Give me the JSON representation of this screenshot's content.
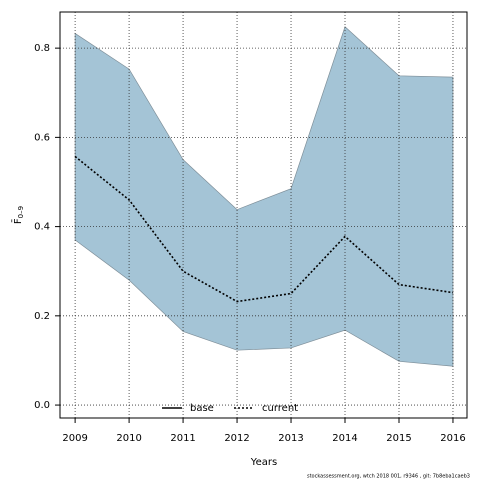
{
  "chart_data": {
    "type": "line",
    "xlabel": "Years",
    "ylabel": {
      "main": "F̄",
      "sub": "0–9"
    },
    "footer": "stockassessment.org, wtch 2018 001, r9346 , git: 7b8eba1caeb3",
    "x": [
      2009,
      2010,
      2011,
      2012,
      2013,
      2014,
      2015,
      2016
    ],
    "series": [
      {
        "name": "current",
        "color": "#000000",
        "band_color": "#a4c4d6",
        "values": [
          0.557,
          0.46,
          0.3,
          0.232,
          0.25,
          0.378,
          0.27,
          0.252
        ],
        "lower": [
          0.37,
          0.28,
          0.165,
          0.123,
          0.128,
          0.168,
          0.098,
          0.087
        ],
        "upper": [
          0.833,
          0.753,
          0.55,
          0.438,
          0.485,
          0.848,
          0.738,
          0.735
        ]
      }
    ],
    "legend": [
      {
        "name": "base",
        "style": "solid"
      },
      {
        "name": "current",
        "style": "dotted"
      }
    ],
    "legend_position": "bottom",
    "xlim": [
      2008.72,
      2016.26
    ],
    "xticks": [
      2009,
      2010,
      2011,
      2012,
      2013,
      2014,
      2015,
      2016
    ],
    "ylim": [
      -0.029,
      0.881
    ],
    "yticks": [
      {
        "value": 0,
        "label": "0.0"
      },
      0.2,
      0.4,
      0.6,
      0.8
    ],
    "grid": true
  }
}
